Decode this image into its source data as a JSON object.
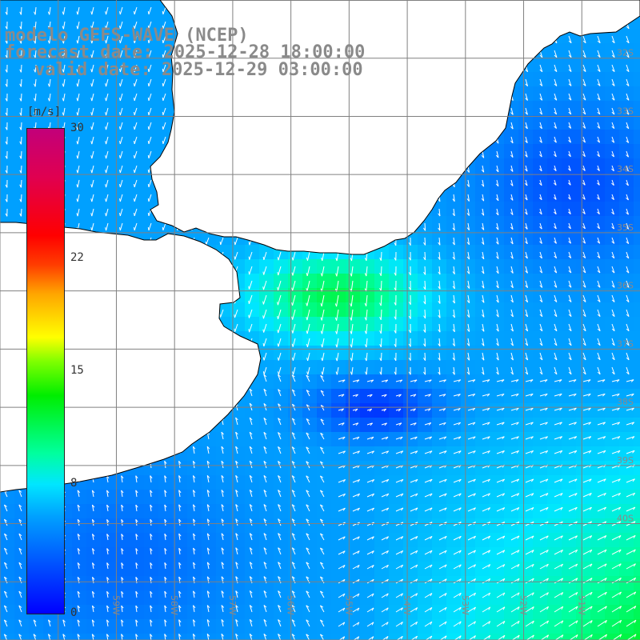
{
  "title": {
    "line1": "modelo GEFS-WAVE (NCEP)",
    "line2": "forecast date: 2025-12-28 18:00:00",
    "line3": "valid date: 2025-12-29 03:00:00"
  },
  "colorbar": {
    "units": "[m/s]",
    "ticks": [
      {
        "label": "30",
        "value": 30
      },
      {
        "label": "22",
        "value": 22
      },
      {
        "label": "15",
        "value": 15
      },
      {
        "label": "8",
        "value": 8
      },
      {
        "label": "0",
        "value": 0
      }
    ],
    "stops": [
      "#0000ff",
      "#00a0ff",
      "#00e6ff",
      "#00ee00",
      "#ffff00",
      "#ff0000",
      "#c2007a"
    ]
  },
  "map": {
    "lon_range": [
      -61.0,
      -50.0
    ],
    "lat_range": [
      -42.0,
      -31.0
    ],
    "grid_color": "#808080",
    "land_color": "#ffffff",
    "coast_color": "#000000",
    "arrow_color": "#ffffff",
    "lat_labels": [
      {
        "label": "32S",
        "lat": -32
      },
      {
        "label": "33S",
        "lat": -33
      },
      {
        "label": "34S",
        "lat": -34
      },
      {
        "label": "35S",
        "lat": -35
      },
      {
        "label": "36S",
        "lat": -36
      },
      {
        "label": "37S",
        "lat": -37
      },
      {
        "label": "38S",
        "lat": -38
      },
      {
        "label": "39S",
        "lat": -39
      },
      {
        "label": "40S",
        "lat": -40
      }
    ],
    "lon_labels": [
      {
        "label": "59W",
        "lon": -59
      },
      {
        "label": "58W",
        "lon": -58
      },
      {
        "label": "57W",
        "lon": -57
      },
      {
        "label": "56W",
        "lon": -56
      },
      {
        "label": "55W",
        "lon": -55
      },
      {
        "label": "54W",
        "lon": -54
      },
      {
        "label": "53W",
        "lon": -53
      },
      {
        "label": "52W",
        "lon": -52
      },
      {
        "label": "51W",
        "lon": -51
      }
    ]
  }
}
